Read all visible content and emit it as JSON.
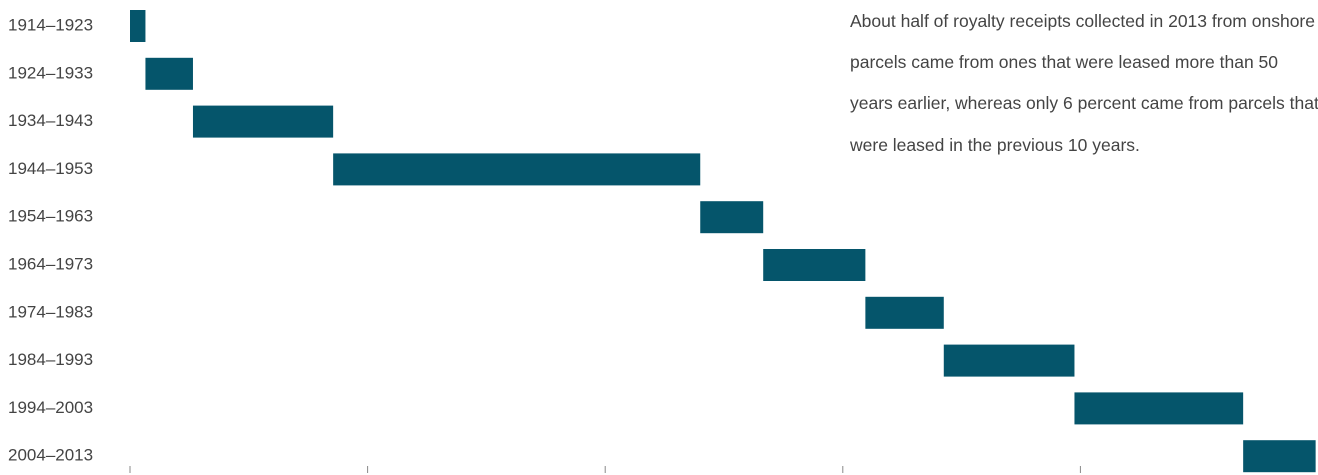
{
  "chart_data": {
    "type": "waterfall",
    "annotation": "About half of royalty receipts collected in 2013 from onshore parcels came from ones that were leased more than 50 years earlier, whereas only 6 percent came from parcels that were leased in the previous 10 years.",
    "categories": [
      "1914–1923",
      "1924–1933",
      "1934–1943",
      "1944–1953",
      "1954–1963",
      "1964–1973",
      "1974–1983",
      "1984–1993",
      "1994–2003",
      "2004–2013"
    ],
    "values": [
      1.3,
      4.0,
      11.8,
      30.9,
      5.3,
      8.6,
      6.6,
      11.0,
      14.2,
      6.1
    ],
    "color": "#05556b",
    "xlim": [
      0,
      100
    ],
    "xticks": [
      0,
      20,
      40,
      60,
      80
    ]
  }
}
